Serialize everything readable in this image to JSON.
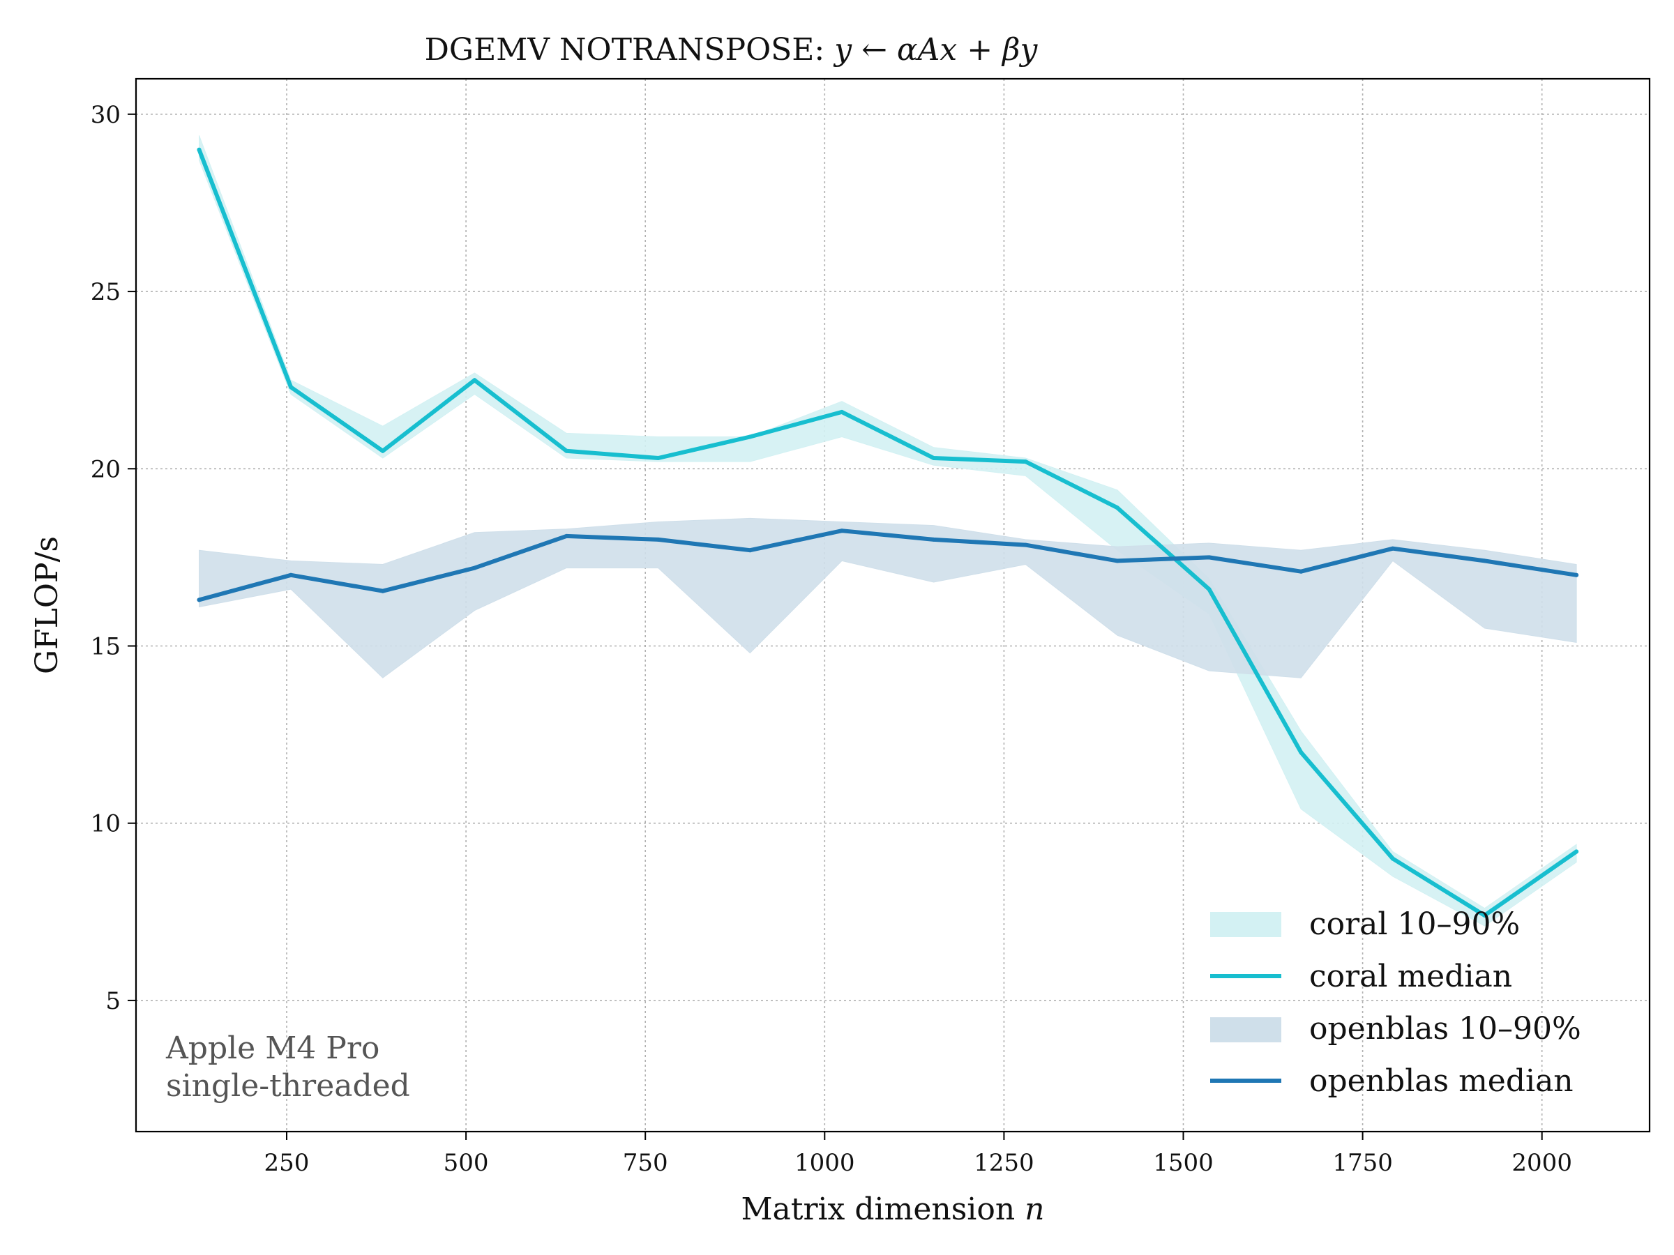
{
  "chart_data": {
    "type": "line",
    "title_prefix": "DGEMV NOTRANSPOSE: ",
    "title_math": "y ← αAx + βy",
    "xlabel_prefix": "Matrix dimension ",
    "xlabel_math": "n",
    "ylabel": "GFLOP/s",
    "xlim": [
      40,
      2150
    ],
    "ylim": [
      1.3,
      31.0
    ],
    "x_ticks": [
      250,
      500,
      750,
      1000,
      1250,
      1500,
      1750,
      2000
    ],
    "y_ticks": [
      5,
      10,
      15,
      20,
      25,
      30
    ],
    "grid": true,
    "legend_position": "lower-right",
    "x": [
      128,
      256,
      384,
      512,
      640,
      768,
      896,
      1024,
      1152,
      1280,
      1408,
      1536,
      1664,
      1792,
      1920,
      2048
    ],
    "series": [
      {
        "name": "coral median",
        "band_name": "coral 10–90%",
        "color": "#17becf",
        "band_color": "#d3f1f3",
        "median": [
          29.0,
          22.3,
          20.5,
          22.5,
          20.5,
          20.3,
          20.9,
          21.6,
          20.3,
          20.2,
          18.9,
          16.6,
          12.0,
          9.0,
          7.4,
          9.2
        ],
        "p10": [
          28.7,
          22.1,
          20.3,
          22.1,
          20.3,
          20.2,
          20.2,
          20.9,
          20.1,
          19.8,
          17.7,
          15.9,
          10.4,
          8.5,
          7.1,
          8.9
        ],
        "p90": [
          29.4,
          22.5,
          21.2,
          22.7,
          21.0,
          20.9,
          20.9,
          21.9,
          20.6,
          20.3,
          19.4,
          16.9,
          12.6,
          9.2,
          7.6,
          9.4
        ]
      },
      {
        "name": "openblas median",
        "band_name": "openblas 10–90%",
        "color": "#1f77b4",
        "band_color": "#cfdfea",
        "median": [
          16.3,
          17.0,
          16.55,
          17.2,
          18.1,
          18.0,
          17.7,
          18.25,
          18.0,
          17.85,
          17.4,
          17.5,
          17.1,
          17.75,
          17.4,
          17.0
        ],
        "p10": [
          16.1,
          16.6,
          14.1,
          16.0,
          17.2,
          17.2,
          14.8,
          17.4,
          16.8,
          17.3,
          15.3,
          14.3,
          14.1,
          17.4,
          15.5,
          15.1
        ],
        "p90": [
          17.7,
          17.4,
          17.3,
          18.2,
          18.3,
          18.5,
          18.6,
          18.5,
          18.4,
          18.0,
          17.8,
          17.9,
          17.7,
          18.0,
          17.7,
          17.3
        ]
      }
    ],
    "annotation": [
      "Apple M4 Pro",
      "single-threaded"
    ]
  }
}
